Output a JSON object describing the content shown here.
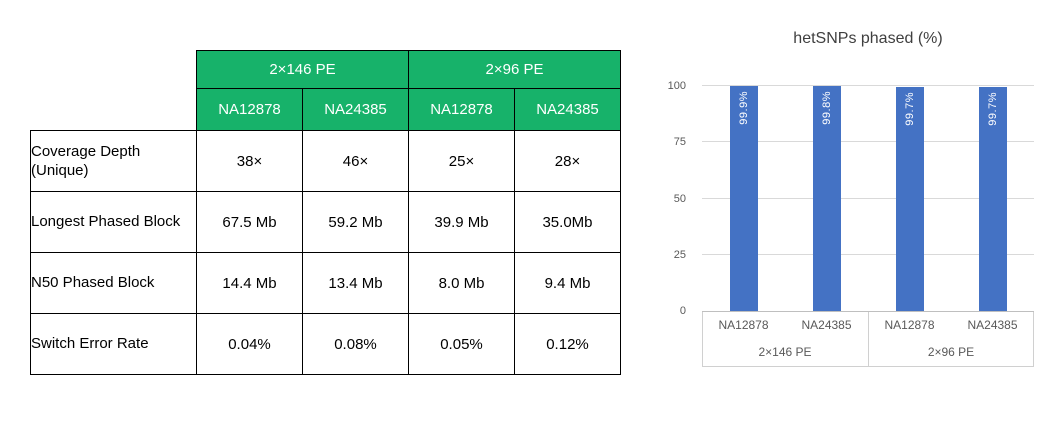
{
  "table": {
    "header_color": "#17b26a",
    "groups": [
      {
        "label": "2×146 PE"
      },
      {
        "label": "2×96 PE"
      }
    ],
    "col_headers": [
      "NA12878",
      "NA24385",
      "NA12878",
      "NA24385"
    ],
    "rows": [
      {
        "label": "Coverage Depth (Unique)",
        "values": [
          "38×",
          "46×",
          "25×",
          "28×"
        ]
      },
      {
        "label": "Longest Phased Block",
        "values": [
          "67.5 Mb",
          "59.2 Mb",
          "39.9 Mb",
          "35.0Mb"
        ]
      },
      {
        "label": "N50 Phased Block",
        "values": [
          "14.4 Mb",
          "13.4 Mb",
          "8.0 Mb",
          "9.4 Mb"
        ]
      },
      {
        "label": "Switch Error Rate",
        "values": [
          "0.04%",
          "0.08%",
          "0.05%",
          "0.12%"
        ]
      }
    ]
  },
  "chart_data": {
    "type": "bar",
    "title": "hetSNPs phased (%)",
    "categories": [
      "NA12878",
      "NA24385",
      "NA12878",
      "NA24385"
    ],
    "group_labels": [
      "2×146 PE",
      "2×96 PE"
    ],
    "values": [
      99.9,
      99.8,
      99.7,
      99.7
    ],
    "data_labels": [
      "99.9%",
      "99.8%",
      "99.7%",
      "99.7%"
    ],
    "ylim": [
      0,
      100
    ],
    "yticks": [
      0,
      25,
      50,
      75,
      100
    ],
    "bar_color": "#4472c4",
    "grid": true,
    "legend": "none"
  }
}
